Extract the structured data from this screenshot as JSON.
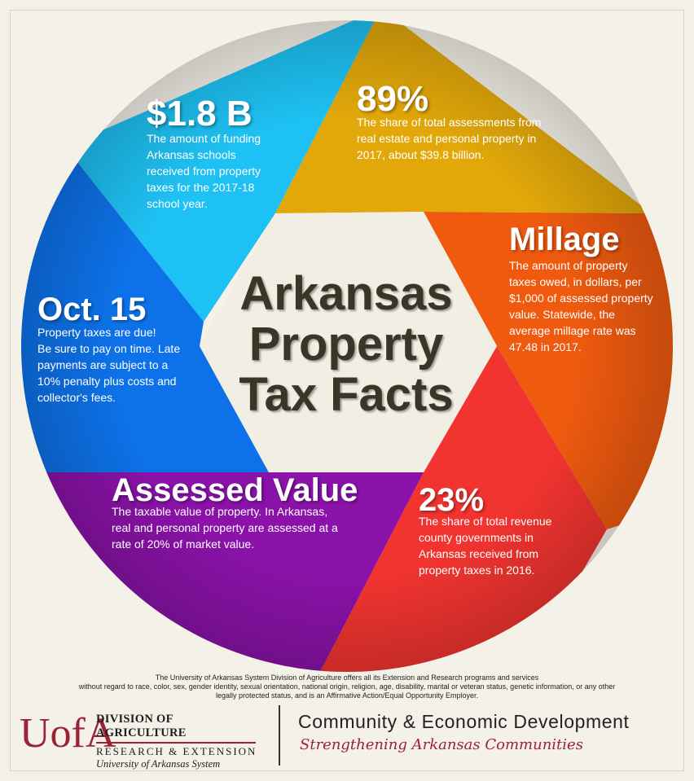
{
  "title": {
    "line1": "Arkansas",
    "line2": "Property",
    "line3": "Tax Facts"
  },
  "segments": {
    "funding": {
      "headline": "$1.8 B",
      "lines": [
        "The amount of funding",
        "Arkansas schools",
        "received from property",
        "taxes for the 2017-18",
        "school year."
      ],
      "color": "#1ec1f3"
    },
    "assessments": {
      "headline": "89%",
      "lines": [
        "The share of total assessments from",
        "real estate and personal property in",
        "2017, about $39.8 billion."
      ],
      "color": "#e2a80a"
    },
    "millage": {
      "headline": "Millage",
      "lines": [
        "The amount of property",
        "taxes owed, in dollars, per",
        "$1,000 of assessed property",
        "value.  Statewide, the",
        "average millage rate was",
        "47.48 in 2017."
      ],
      "color": "#ef5a0f"
    },
    "county": {
      "headline": "23%",
      "lines": [
        "The share of total revenue",
        "county governments in",
        "Arkansas received from",
        "property taxes in 2016."
      ],
      "color": "#f23430"
    },
    "assessed_value": {
      "headline": "Assessed Value",
      "lines": [
        "The taxable value of property.  In Arkansas,",
        "real and personal property are assessed at a",
        "rate of 20% of market value."
      ],
      "color": "#8a12a8"
    },
    "due_date": {
      "headline": "Oct. 15",
      "lines": [
        "Property taxes are due!",
        "Be sure to pay on time.  Late",
        "payments are subject to a",
        "10% penalty plus costs and",
        "collector's fees."
      ],
      "color": "#0d72ea"
    }
  },
  "disclaimer": {
    "line1": "The University of Arkansas System Division of Agriculture offers all its Extension and Research programs and services",
    "line2": "without regard to race, color, sex, gender identity, sexual orientation, national origin, religion, age, disability, marital or veteran status, genetic information, or any other",
    "line3": "legally protected status, and is an Affirmative Action/Equal Opportunity Employer."
  },
  "footer": {
    "logo_mark": "UofA",
    "division": "DIVISION OF AGRICULTURE",
    "research": "RESEARCH & EXTENSION",
    "system": "University of Arkansas System",
    "department": "Community & Economic Development",
    "tagline": "Strengthening Arkansas Communities",
    "brand_color": "#9d2235"
  }
}
